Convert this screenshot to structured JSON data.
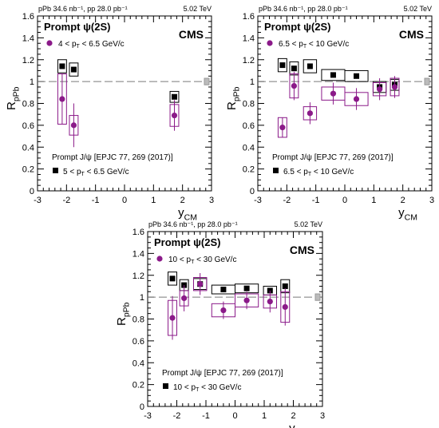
{
  "chart_data": [
    {
      "type": "scatter",
      "header_left": "pPb 34.6 nb⁻¹, pp 28.0 pb⁻¹",
      "header_right": "5.02 TeV",
      "experiment": "CMS",
      "title": "Prompt ψ(2S)",
      "xlabel": "y_CM",
      "ylabel": "R_pPb",
      "xlim": [
        -3,
        3
      ],
      "ylim": [
        0,
        1.6
      ],
      "xticks": [
        "-3",
        "-2",
        "-1",
        "0",
        "1",
        "2",
        "3"
      ],
      "yticks": [
        "0",
        "0.2",
        "0.4",
        "0.6",
        "0.8",
        "1",
        "1.2",
        "1.4",
        "1.6"
      ],
      "reference_line": 1,
      "reference_label": "Prompt J/ψ [EPJC 77, 269 (2017)]",
      "series": [
        {
          "name": "4 < p_T < 6.5 GeV/c",
          "color": "#8b1a89",
          "marker": "circle",
          "points": [
            {
              "x": -2.15,
              "y": 0.84,
              "stat": 0.23,
              "syst": 0.23,
              "boxw": 0.3
            },
            {
              "x": -1.75,
              "y": 0.6,
              "stat": 0.2,
              "syst": 0.09,
              "boxw": 0.3
            },
            {
              "x": 1.72,
              "y": 0.69,
              "stat": 0.14,
              "syst": 0.1,
              "boxw": 0.3
            }
          ]
        },
        {
          "name": "5 < p_T < 6.5 GeV/c",
          "color": "#000000",
          "marker": "square",
          "points": [
            {
              "x": -2.15,
              "y": 1.14,
              "stat": 0.02,
              "syst": 0.06,
              "boxw": 0.3
            },
            {
              "x": -1.75,
              "y": 1.11,
              "stat": 0.02,
              "syst": 0.06,
              "boxw": 0.3
            },
            {
              "x": 1.72,
              "y": 0.86,
              "stat": 0.02,
              "syst": 0.05,
              "boxw": 0.3
            }
          ]
        }
      ]
    },
    {
      "type": "scatter",
      "header_left": "pPb 34.6 nb⁻¹, pp 28.0 pb⁻¹",
      "header_right": "5.02 TeV",
      "experiment": "CMS",
      "title": "Prompt ψ(2S)",
      "xlabel": "y_CM",
      "ylabel": "R_pPb",
      "xlim": [
        -3,
        3
      ],
      "ylim": [
        0,
        1.6
      ],
      "xticks": [
        "-3",
        "-2",
        "-1",
        "0",
        "1",
        "2",
        "3"
      ],
      "yticks": [
        "0",
        "0.2",
        "0.4",
        "0.6",
        "0.8",
        "1",
        "1.2",
        "1.4",
        "1.6"
      ],
      "reference_line": 1,
      "reference_label": "Prompt J/ψ [EPJC 77, 269 (2017)]",
      "series": [
        {
          "name": "6.5 < p_T < 10 GeV/c",
          "color": "#8b1a89",
          "marker": "circle",
          "points": [
            {
              "x": -2.15,
              "y": 0.58,
              "stat": 0.09,
              "syst": 0.09,
              "boxw": 0.3
            },
            {
              "x": -1.75,
              "y": 0.96,
              "stat": 0.13,
              "syst": 0.11,
              "boxw": 0.3
            },
            {
              "x": -1.2,
              "y": 0.71,
              "stat": 0.1,
              "syst": 0.06,
              "boxw": 0.45
            },
            {
              "x": -0.4,
              "y": 0.89,
              "stat": 0.1,
              "syst": 0.06,
              "boxw": 0.8
            },
            {
              "x": 0.4,
              "y": 0.84,
              "stat": 0.1,
              "syst": 0.06,
              "boxw": 0.8
            },
            {
              "x": 1.2,
              "y": 0.93,
              "stat": 0.1,
              "syst": 0.06,
              "boxw": 0.45
            },
            {
              "x": 1.72,
              "y": 0.95,
              "stat": 0.1,
              "syst": 0.08,
              "boxw": 0.3
            }
          ]
        },
        {
          "name": "6.5 < p_T < 10 GeV/c",
          "color": "#000000",
          "marker": "square",
          "points": [
            {
              "x": -2.15,
              "y": 1.15,
              "stat": 0.02,
              "syst": 0.06,
              "boxw": 0.3
            },
            {
              "x": -1.75,
              "y": 1.12,
              "stat": 0.02,
              "syst": 0.06,
              "boxw": 0.3
            },
            {
              "x": -1.2,
              "y": 1.14,
              "stat": 0.02,
              "syst": 0.06,
              "boxw": 0.45
            },
            {
              "x": -0.4,
              "y": 1.06,
              "stat": 0.02,
              "syst": 0.05,
              "boxw": 0.8
            },
            {
              "x": 0.4,
              "y": 1.05,
              "stat": 0.02,
              "syst": 0.05,
              "boxw": 0.8
            },
            {
              "x": 1.2,
              "y": 0.95,
              "stat": 0.02,
              "syst": 0.05,
              "boxw": 0.45
            },
            {
              "x": 1.72,
              "y": 0.97,
              "stat": 0.02,
              "syst": 0.05,
              "boxw": 0.3
            }
          ]
        }
      ]
    },
    {
      "type": "scatter",
      "header_left": "pPb 34.6 nb⁻¹, pp 28.0 pb⁻¹",
      "header_right": "5.02 TeV",
      "experiment": "CMS",
      "title": "Prompt ψ(2S)",
      "xlabel": "y_CM",
      "ylabel": "R_pPb",
      "xlim": [
        -3,
        3
      ],
      "ylim": [
        0,
        1.6
      ],
      "xticks": [
        "-3",
        "-2",
        "-1",
        "0",
        "1",
        "2",
        "3"
      ],
      "yticks": [
        "0",
        "0.2",
        "0.4",
        "0.6",
        "0.8",
        "1",
        "1.2",
        "1.4",
        "1.6"
      ],
      "reference_line": 1,
      "reference_label": "Prompt J/ψ [EPJC 77, 269 (2017)]",
      "series": [
        {
          "name": "10 < p_T < 30 GeV/c",
          "color": "#8b1a89",
          "marker": "circle",
          "points": [
            {
              "x": -2.15,
              "y": 0.81,
              "stat": 0.2,
              "syst": 0.16,
              "boxw": 0.3
            },
            {
              "x": -1.75,
              "y": 0.99,
              "stat": 0.12,
              "syst": 0.07,
              "boxw": 0.3
            },
            {
              "x": -1.2,
              "y": 1.12,
              "stat": 0.1,
              "syst": 0.06,
              "boxw": 0.45
            },
            {
              "x": -0.4,
              "y": 0.88,
              "stat": 0.08,
              "syst": 0.06,
              "boxw": 0.8
            },
            {
              "x": 0.4,
              "y": 0.97,
              "stat": 0.08,
              "syst": 0.06,
              "boxw": 0.8
            },
            {
              "x": 1.2,
              "y": 0.96,
              "stat": 0.1,
              "syst": 0.06,
              "boxw": 0.45
            },
            {
              "x": 1.72,
              "y": 0.91,
              "stat": 0.17,
              "syst": 0.14,
              "boxw": 0.3
            }
          ]
        },
        {
          "name": "10 < p_T < 30 GeV/c",
          "color": "#000000",
          "marker": "square",
          "points": [
            {
              "x": -2.15,
              "y": 1.17,
              "stat": 0.02,
              "syst": 0.06,
              "boxw": 0.3
            },
            {
              "x": -1.75,
              "y": 1.11,
              "stat": 0.02,
              "syst": 0.05,
              "boxw": 0.3
            },
            {
              "x": -1.2,
              "y": 1.12,
              "stat": 0.02,
              "syst": 0.05,
              "boxw": 0.45
            },
            {
              "x": -0.4,
              "y": 1.07,
              "stat": 0.02,
              "syst": 0.04,
              "boxw": 0.8
            },
            {
              "x": 0.4,
              "y": 1.08,
              "stat": 0.02,
              "syst": 0.04,
              "boxw": 0.8
            },
            {
              "x": 1.2,
              "y": 1.06,
              "stat": 0.02,
              "syst": 0.04,
              "boxw": 0.45
            },
            {
              "x": 1.72,
              "y": 1.1,
              "stat": 0.02,
              "syst": 0.06,
              "boxw": 0.3
            }
          ]
        }
      ]
    }
  ]
}
